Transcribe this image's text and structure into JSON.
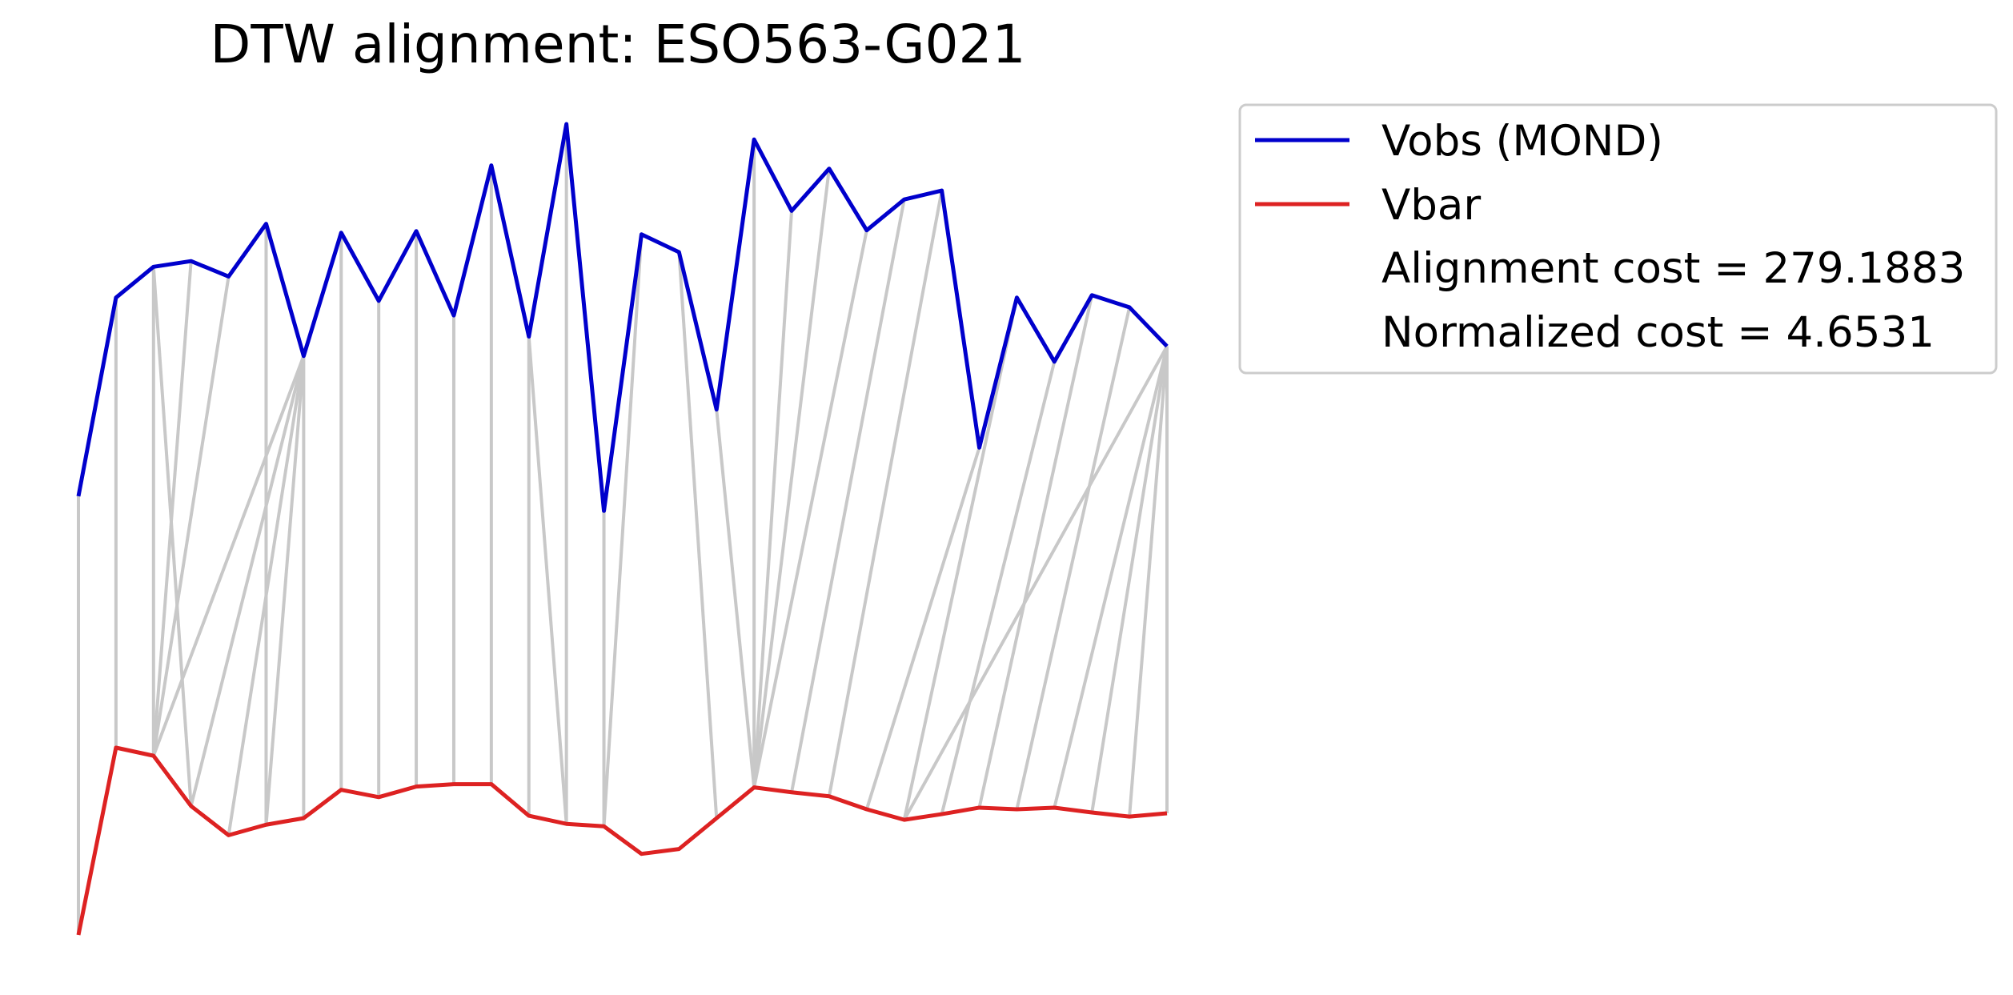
{
  "chart_data": {
    "type": "line",
    "title": "DTW alignment: ESO563-G021",
    "xlabel": "",
    "ylabel": "",
    "axes_visible": false,
    "grid": false,
    "legend_position": "outside-right-top",
    "colors": {
      "vobs": "#0000cc",
      "vbar": "#dd2222",
      "warp": "#c8c8c8"
    },
    "ylim": [
      0,
      1
    ],
    "series": [
      {
        "name": "Vobs (MOND)",
        "values": [
          0.541,
          0.786,
          0.824,
          0.831,
          0.812,
          0.877,
          0.714,
          0.866,
          0.782,
          0.868,
          0.764,
          0.949,
          0.738,
          1.0,
          0.523,
          0.864,
          0.842,
          0.648,
          0.981,
          0.893,
          0.945,
          0.869,
          0.907,
          0.918,
          0.601,
          0.786,
          0.707,
          0.789,
          0.774,
          0.726
        ]
      },
      {
        "name": "Vbar",
        "values": [
          0.0,
          0.231,
          0.221,
          0.159,
          0.123,
          0.136,
          0.144,
          0.179,
          0.17,
          0.183,
          0.186,
          0.186,
          0.147,
          0.137,
          0.134,
          0.1,
          0.106,
          0.144,
          0.182,
          0.176,
          0.171,
          0.155,
          0.142,
          0.149,
          0.157,
          0.155,
          0.157,
          0.151,
          0.146,
          0.15
        ]
      }
    ],
    "warping_path": [
      [
        0,
        0
      ],
      [
        1,
        1
      ],
      [
        2,
        2
      ],
      [
        2,
        3
      ],
      [
        3,
        2
      ],
      [
        4,
        2
      ],
      [
        5,
        5
      ],
      [
        6,
        2
      ],
      [
        6,
        3
      ],
      [
        6,
        4
      ],
      [
        6,
        5
      ],
      [
        6,
        6
      ],
      [
        7,
        7
      ],
      [
        8,
        8
      ],
      [
        9,
        9
      ],
      [
        10,
        10
      ],
      [
        11,
        11
      ],
      [
        12,
        12
      ],
      [
        12,
        13
      ],
      [
        13,
        13
      ],
      [
        14,
        14
      ],
      [
        15,
        14
      ],
      [
        16,
        17
      ],
      [
        17,
        18
      ],
      [
        18,
        18
      ],
      [
        19,
        18
      ],
      [
        20,
        18
      ],
      [
        21,
        18
      ],
      [
        22,
        19
      ],
      [
        23,
        20
      ],
      [
        24,
        21
      ],
      [
        25,
        22
      ],
      [
        26,
        23
      ],
      [
        27,
        24
      ],
      [
        28,
        25
      ],
      [
        29,
        22
      ],
      [
        29,
        26
      ],
      [
        29,
        27
      ],
      [
        29,
        28
      ],
      [
        29,
        29
      ]
    ],
    "annotations": [
      "Alignment cost = 279.1883",
      "Normalized cost = 4.6531"
    ]
  }
}
